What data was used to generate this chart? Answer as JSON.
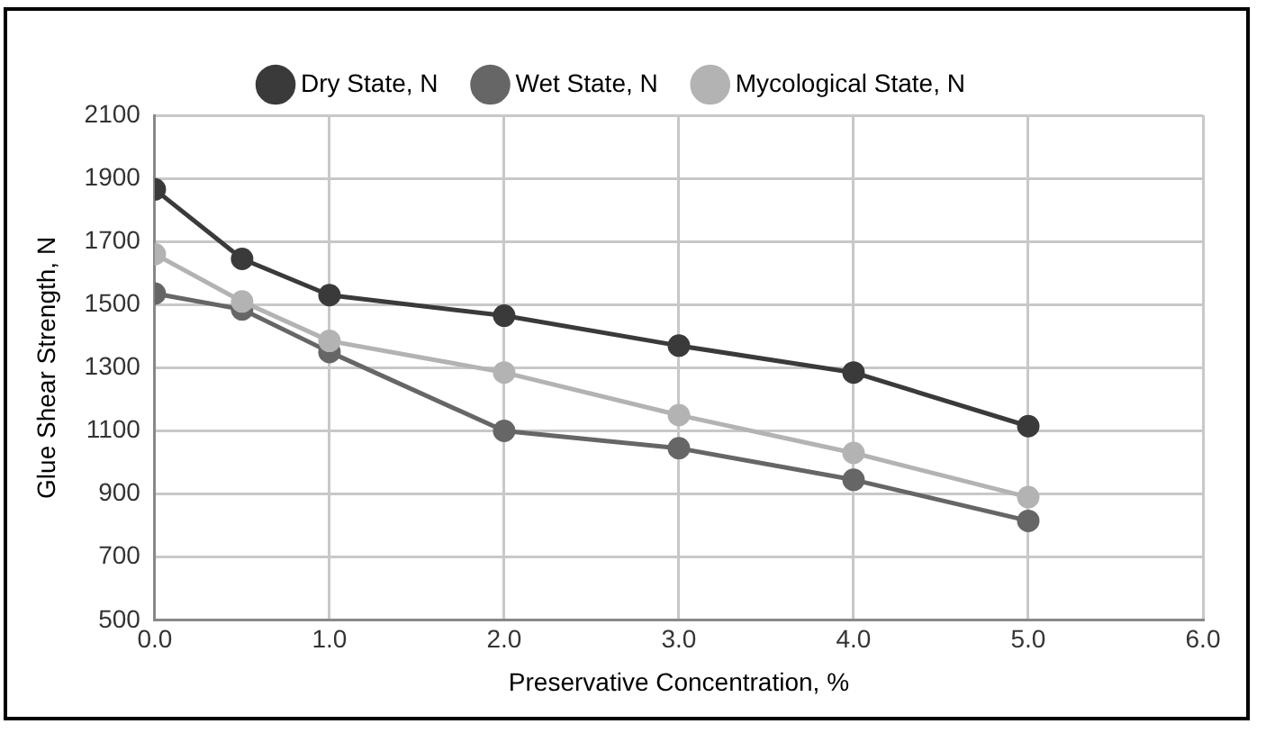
{
  "chart_data": {
    "type": "line",
    "xlabel": "Preservative Concentration, %",
    "ylabel": "Glue Shear Strength, N",
    "x": [
      0,
      0.5,
      1,
      2,
      3,
      4,
      5
    ],
    "series": [
      {
        "name": "Dry State, N",
        "color": "#3a3a3a",
        "values": [
          1865,
          1645,
          1530,
          1465,
          1370,
          1285,
          1115
        ]
      },
      {
        "name": "Wet State, N",
        "color": "#666666",
        "values": [
          1535,
          1485,
          1350,
          1100,
          1045,
          945,
          815
        ]
      },
      {
        "name": "Mycological State, N",
        "color": "#b3b3b3",
        "values": [
          1660,
          1510,
          1385,
          1285,
          1150,
          1030,
          890
        ]
      }
    ],
    "xlim": [
      0,
      6
    ],
    "xticks": [
      {
        "value": 0,
        "label": "0.0"
      },
      {
        "value": 1,
        "label": "1.0"
      },
      {
        "value": 2,
        "label": "2.0"
      },
      {
        "value": 3,
        "label": "3.0"
      },
      {
        "value": 4,
        "label": "4.0"
      },
      {
        "value": 5,
        "label": "5.0"
      },
      {
        "value": 6,
        "label": "6.0"
      }
    ],
    "ylim": [
      500,
      2100
    ],
    "yticks": [
      500,
      700,
      900,
      1100,
      1300,
      1500,
      1700,
      1900,
      2100
    ],
    "grid": true,
    "legend": "top",
    "marker": "circle",
    "line_style": "solid"
  }
}
